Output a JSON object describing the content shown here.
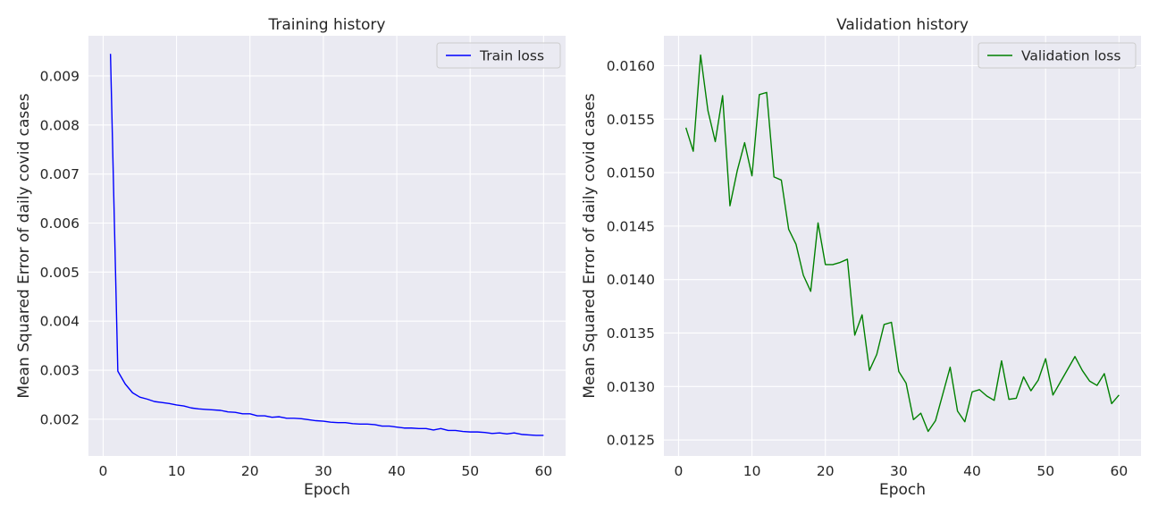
{
  "chart_data": [
    {
      "type": "line",
      "title": "Training history",
      "xlabel": "Epoch",
      "ylabel": "Mean Squared Error of daily covid cases",
      "xlim": [
        -2,
        63
      ],
      "ylim": [
        0.00125,
        0.00982
      ],
      "xticks": [
        0,
        10,
        20,
        30,
        40,
        50,
        60
      ],
      "yticks": [
        0.002,
        0.003,
        0.004,
        0.005,
        0.006,
        0.007,
        0.008,
        0.009
      ],
      "ytick_labels": [
        "0.002",
        "0.003",
        "0.004",
        "0.005",
        "0.006",
        "0.007",
        "0.008",
        "0.009"
      ],
      "grid": true,
      "legend": "top-right",
      "series": [
        {
          "name": "Train loss",
          "color": "#0000ff",
          "x": [
            1,
            2,
            3,
            4,
            5,
            6,
            7,
            8,
            9,
            10,
            11,
            12,
            13,
            14,
            15,
            16,
            17,
            18,
            19,
            20,
            21,
            22,
            23,
            24,
            25,
            26,
            27,
            28,
            29,
            30,
            31,
            32,
            33,
            34,
            35,
            36,
            37,
            38,
            39,
            40,
            41,
            42,
            43,
            44,
            45,
            46,
            47,
            48,
            49,
            50,
            51,
            52,
            53,
            54,
            55,
            56,
            57,
            58,
            59,
            60
          ],
          "y": [
            0.00945,
            0.00298,
            0.00272,
            0.00254,
            0.00245,
            0.00241,
            0.00236,
            0.00234,
            0.00232,
            0.00229,
            0.00227,
            0.00223,
            0.00221,
            0.0022,
            0.00219,
            0.00218,
            0.00215,
            0.00214,
            0.00211,
            0.00211,
            0.00207,
            0.00207,
            0.00204,
            0.00205,
            0.00202,
            0.00202,
            0.00201,
            0.00199,
            0.00197,
            0.00196,
            0.00194,
            0.00193,
            0.00193,
            0.00191,
            0.0019,
            0.0019,
            0.00189,
            0.00186,
            0.00186,
            0.00184,
            0.00182,
            0.00182,
            0.00181,
            0.00181,
            0.00178,
            0.00181,
            0.00177,
            0.00177,
            0.00175,
            0.00174,
            0.00174,
            0.00173,
            0.00171,
            0.00172,
            0.0017,
            0.00172,
            0.00169,
            0.00168,
            0.00167,
            0.00167
          ]
        }
      ]
    },
    {
      "type": "line",
      "title": "Validation history",
      "xlabel": "Epoch",
      "ylabel": "Mean Squared Error of daily covid cases",
      "xlim": [
        -2,
        63
      ],
      "ylim": [
        0.01235,
        0.01628
      ],
      "xticks": [
        0,
        10,
        20,
        30,
        40,
        50,
        60
      ],
      "yticks": [
        0.0125,
        0.013,
        0.0135,
        0.014,
        0.0145,
        0.015,
        0.0155,
        0.016
      ],
      "ytick_labels": [
        "0.0125",
        "0.0130",
        "0.0135",
        "0.0140",
        "0.0145",
        "0.0150",
        "0.0155",
        "0.0160"
      ],
      "grid": true,
      "legend": "top-right",
      "series": [
        {
          "name": "Validation loss",
          "color": "#008000",
          "x": [
            1,
            2,
            3,
            4,
            5,
            6,
            7,
            8,
            9,
            10,
            11,
            12,
            13,
            14,
            15,
            16,
            17,
            18,
            19,
            20,
            21,
            22,
            23,
            24,
            25,
            26,
            27,
            28,
            29,
            30,
            31,
            32,
            33,
            34,
            35,
            36,
            37,
            38,
            39,
            40,
            41,
            42,
            43,
            44,
            45,
            46,
            47,
            48,
            49,
            50,
            51,
            52,
            53,
            54,
            55,
            56,
            57,
            58,
            59,
            60
          ],
          "y": [
            0.01542,
            0.0152,
            0.0161,
            0.01558,
            0.01529,
            0.01572,
            0.01469,
            0.01502,
            0.01528,
            0.01497,
            0.01573,
            0.01575,
            0.01496,
            0.01493,
            0.01447,
            0.01433,
            0.01404,
            0.01389,
            0.01453,
            0.01414,
            0.01414,
            0.01416,
            0.01419,
            0.01348,
            0.01367,
            0.01315,
            0.0133,
            0.01358,
            0.0136,
            0.01314,
            0.01303,
            0.01269,
            0.01275,
            0.01258,
            0.01268,
            0.01293,
            0.01318,
            0.01277,
            0.01267,
            0.01295,
            0.01297,
            0.01291,
            0.01287,
            0.01324,
            0.01288,
            0.01289,
            0.01309,
            0.01296,
            0.01306,
            0.01326,
            0.01292,
            0.01304,
            0.01316,
            0.01328,
            0.01315,
            0.01305,
            0.01301,
            0.01312,
            0.01284,
            0.01292
          ]
        }
      ]
    }
  ]
}
